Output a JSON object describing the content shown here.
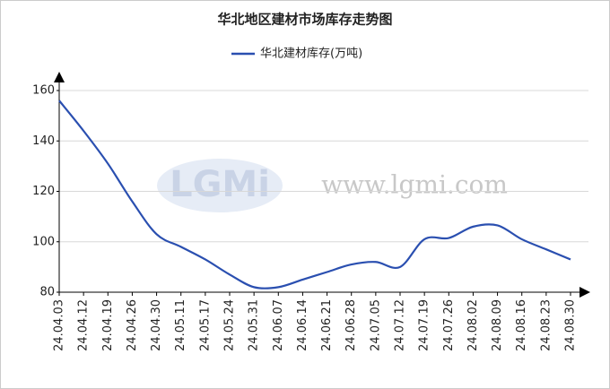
{
  "chart_data": {
    "type": "line",
    "title": "华北地区建材市场库存走势图",
    "watermark": "www.lgmi.com",
    "logo": "LGMi",
    "categories": [
      "24.04.03",
      "24.04.12",
      "24.04.19",
      "24.04.26",
      "24.04.30",
      "24.05.11",
      "24.05.17",
      "24.05.24",
      "24.05.31",
      "24.06.07",
      "24.06.14",
      "24.06.21",
      "24.06.28",
      "24.07.05",
      "24.07.12",
      "24.07.19",
      "24.07.26",
      "24.08.02",
      "24.08.09",
      "24.08.16",
      "24.08.23",
      "24.08.30"
    ],
    "series": [
      {
        "name": "华北建材库存(万吨)",
        "color": "#2a4fb0",
        "values": [
          156,
          144,
          131,
          116,
          103,
          98,
          93,
          87,
          82,
          82,
          85,
          88,
          91,
          92,
          90,
          101,
          101.5,
          106,
          106.5,
          101,
          97,
          93
        ]
      }
    ],
    "ylim": [
      80,
      160
    ],
    "yticks": [
      80,
      100,
      120,
      140,
      160
    ],
    "grid": true,
    "legend": "top"
  }
}
